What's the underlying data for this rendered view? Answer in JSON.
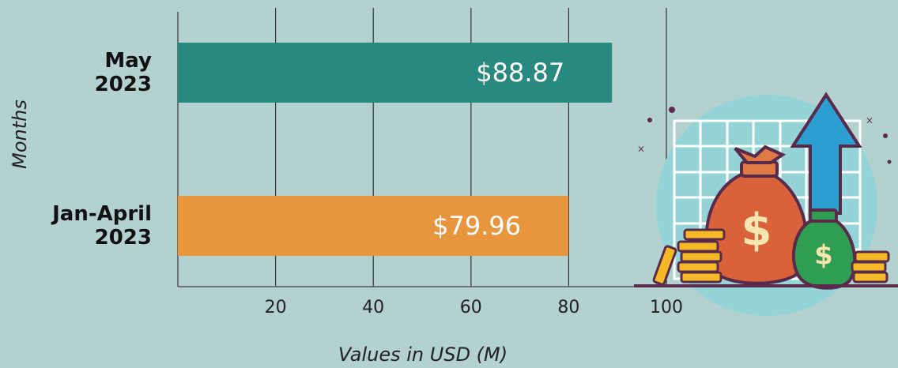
{
  "chart_data": {
    "type": "bar",
    "orientation": "horizontal",
    "categories": [
      "May\n2023",
      "Jan-April\n2023"
    ],
    "values": [
      88.87,
      79.96
    ],
    "value_labels": [
      "$88.87",
      "$79.96"
    ],
    "colors": [
      "#288a7e",
      "#e8963e"
    ],
    "xlim": [
      0,
      100
    ],
    "xticks": [
      20,
      40,
      60,
      80,
      100
    ],
    "grid": true,
    "xlabel": "Values in USD (M)",
    "ylabel": "Months"
  }
}
